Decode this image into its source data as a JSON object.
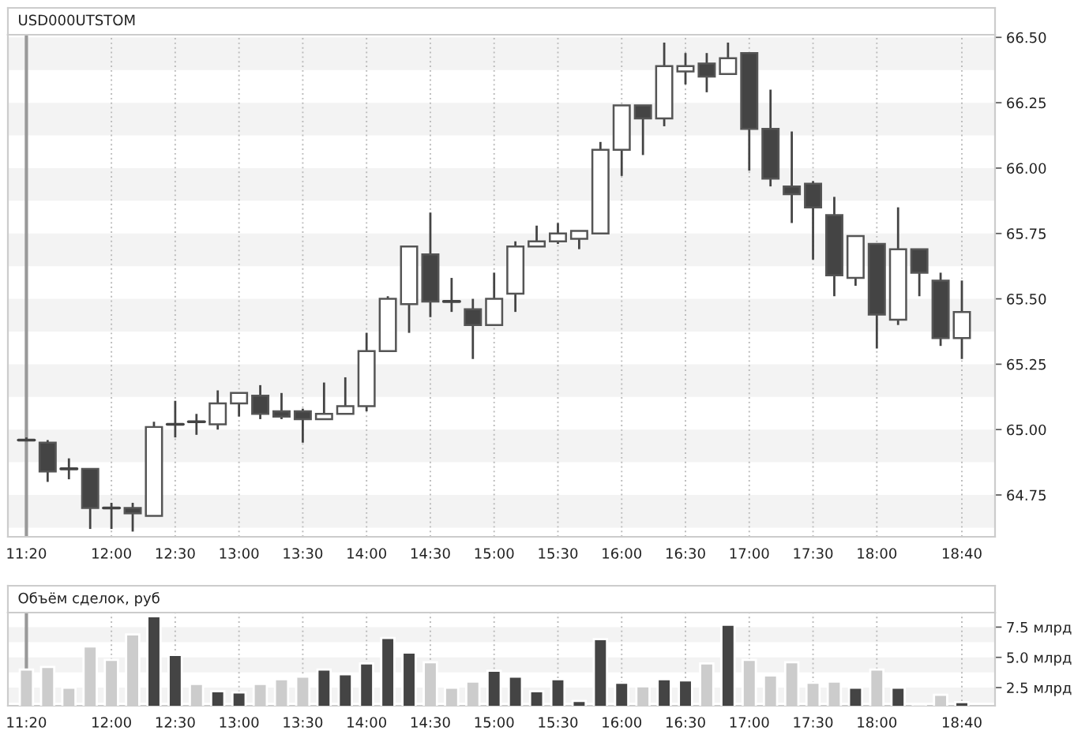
{
  "chart_data": [
    {
      "type": "candlestick",
      "title": "USD000UTSTOM",
      "categories": [
        "11:20",
        null,
        null,
        null,
        "12:00",
        null,
        null,
        "12:30",
        null,
        null,
        "13:00",
        null,
        null,
        "13:30",
        null,
        null,
        "14:00",
        null,
        null,
        "14:30",
        null,
        null,
        "15:00",
        null,
        null,
        "15:30",
        null,
        null,
        "16:00",
        null,
        null,
        "16:30",
        null,
        null,
        "17:00",
        null,
        null,
        "17:30",
        null,
        null,
        "18:00",
        null,
        null,
        null,
        "18:40"
      ],
      "ohlc": [
        [
          64.96,
          64.97,
          64.96,
          64.96
        ],
        [
          64.95,
          64.96,
          64.8,
          64.84
        ],
        [
          64.85,
          64.89,
          64.81,
          64.85
        ],
        [
          64.85,
          64.85,
          64.62,
          64.7
        ],
        [
          64.7,
          64.72,
          64.62,
          64.7
        ],
        [
          64.7,
          64.72,
          64.61,
          64.68
        ],
        [
          64.67,
          65.03,
          64.67,
          65.01
        ],
        [
          65.02,
          65.11,
          64.97,
          65.02
        ],
        [
          65.03,
          65.06,
          64.98,
          65.03
        ],
        [
          65.02,
          65.15,
          65.0,
          65.1
        ],
        [
          65.1,
          65.14,
          65.05,
          65.14
        ],
        [
          65.13,
          65.17,
          65.04,
          65.06
        ],
        [
          65.07,
          65.14,
          65.04,
          65.05
        ],
        [
          65.07,
          65.08,
          64.95,
          65.04
        ],
        [
          65.04,
          65.18,
          65.04,
          65.06
        ],
        [
          65.06,
          65.2,
          65.06,
          65.09
        ],
        [
          65.09,
          65.37,
          65.07,
          65.3
        ],
        [
          65.3,
          65.51,
          65.3,
          65.5
        ],
        [
          65.48,
          65.7,
          65.37,
          65.7
        ],
        [
          65.67,
          65.83,
          65.43,
          65.49
        ],
        [
          65.49,
          65.58,
          65.45,
          65.49
        ],
        [
          65.46,
          65.5,
          65.27,
          65.4
        ],
        [
          65.4,
          65.6,
          65.4,
          65.5
        ],
        [
          65.52,
          65.72,
          65.45,
          65.7
        ],
        [
          65.7,
          65.78,
          65.7,
          65.72
        ],
        [
          65.72,
          65.79,
          65.71,
          65.75
        ],
        [
          65.73,
          65.76,
          65.69,
          65.76
        ],
        [
          65.75,
          66.1,
          65.75,
          66.07
        ],
        [
          66.07,
          66.24,
          65.97,
          66.24
        ],
        [
          66.24,
          66.24,
          66.05,
          66.19
        ],
        [
          66.19,
          66.48,
          66.16,
          66.39
        ],
        [
          66.37,
          66.44,
          66.32,
          66.39
        ],
        [
          66.4,
          66.44,
          66.29,
          66.35
        ],
        [
          66.36,
          66.48,
          66.36,
          66.42
        ],
        [
          66.44,
          66.44,
          65.99,
          66.15
        ],
        [
          66.15,
          66.3,
          65.93,
          65.96
        ],
        [
          65.93,
          66.14,
          65.79,
          65.9
        ],
        [
          65.94,
          65.95,
          65.65,
          65.85
        ],
        [
          65.82,
          65.89,
          65.51,
          65.59
        ],
        [
          65.58,
          65.74,
          65.55,
          65.74
        ],
        [
          65.71,
          65.71,
          65.31,
          65.44
        ],
        [
          65.42,
          65.85,
          65.4,
          65.69
        ],
        [
          65.69,
          65.69,
          65.51,
          65.6
        ],
        [
          65.57,
          65.6,
          65.32,
          65.35
        ],
        [
          65.35,
          65.57,
          65.27,
          65.45
        ]
      ],
      "colors": [
        "#444444",
        "#444444",
        "#444444",
        "#444444",
        "#444444",
        "#444444",
        "#ffffff",
        "#444444",
        "#444444",
        "#ffffff",
        "#ffffff",
        "#444444",
        "#444444",
        "#444444",
        "#ffffff",
        "#ffffff",
        "#ffffff",
        "#ffffff",
        "#ffffff",
        "#444444",
        "#444444",
        "#444444",
        "#ffffff",
        "#ffffff",
        "#ffffff",
        "#ffffff",
        "#ffffff",
        "#ffffff",
        "#ffffff",
        "#444444",
        "#ffffff",
        "#ffffff",
        "#444444",
        "#ffffff",
        "#444444",
        "#444444",
        "#444444",
        "#444444",
        "#444444",
        "#ffffff",
        "#444444",
        "#ffffff",
        "#444444",
        "#444444",
        "#ffffff"
      ],
      "ylim": [
        64.59,
        66.51
      ],
      "yticks": [
        {
          "value": 64.75,
          "label": "64.75"
        },
        {
          "value": 65.0,
          "label": "65.00"
        },
        {
          "value": 65.25,
          "label": "65.25"
        },
        {
          "value": 65.5,
          "label": "65.50"
        },
        {
          "value": 65.75,
          "label": "65.75"
        },
        {
          "value": 66.0,
          "label": "66.00"
        },
        {
          "value": 66.25,
          "label": "66.25"
        },
        {
          "value": 66.5,
          "label": "66.50"
        }
      ],
      "ref_lines": [
        {
          "axis": "x",
          "value": "11:20",
          "color": "#999999"
        }
      ],
      "bands": [
        {
          "axis": "y",
          "from": 64.625,
          "to": 64.75,
          "color": "#f3f3f3"
        },
        {
          "axis": "y",
          "from": 64.875,
          "to": 65.0,
          "color": "#f3f3f3"
        },
        {
          "axis": "y",
          "from": 65.125,
          "to": 65.25,
          "color": "#f3f3f3"
        },
        {
          "axis": "y",
          "from": 65.375,
          "to": 65.5,
          "color": "#f3f3f3"
        },
        {
          "axis": "y",
          "from": 65.625,
          "to": 65.75,
          "color": "#f3f3f3"
        },
        {
          "axis": "y",
          "from": 65.875,
          "to": 66.0,
          "color": "#f3f3f3"
        },
        {
          "axis": "y",
          "from": 66.125,
          "to": 66.25,
          "color": "#f3f3f3"
        },
        {
          "axis": "y",
          "from": 66.375,
          "to": 66.5,
          "color": "#f3f3f3"
        }
      ],
      "grid": "x",
      "legend": false
    },
    {
      "type": "bar",
      "title": "Объём сделок, руб",
      "categories": [
        "11:20",
        null,
        null,
        null,
        "12:00",
        null,
        null,
        "12:30",
        null,
        null,
        "13:00",
        null,
        null,
        "13:30",
        null,
        null,
        "14:00",
        null,
        null,
        "14:30",
        null,
        null,
        "15:00",
        null,
        null,
        "15:30",
        null,
        null,
        "16:00",
        null,
        null,
        "16:30",
        null,
        null,
        "17:00",
        null,
        null,
        "17:30",
        null,
        null,
        "18:00",
        null,
        null,
        null,
        "18:40"
      ],
      "values": [
        4.0,
        4.2,
        2.5,
        5.9,
        4.8,
        6.9,
        8.4,
        5.2,
        2.8,
        2.2,
        2.1,
        2.8,
        3.2,
        3.4,
        4.0,
        3.6,
        4.5,
        6.6,
        5.4,
        4.6,
        2.5,
        3.0,
        3.9,
        3.4,
        2.2,
        3.2,
        1.4,
        6.5,
        2.9,
        2.6,
        3.2,
        3.1,
        4.5,
        7.7,
        4.8,
        3.5,
        4.6,
        2.9,
        3.0,
        2.5,
        4.0,
        2.5,
        1.1,
        1.9,
        1.3
      ],
      "colors": [
        "#cccccc",
        "#cccccc",
        "#cccccc",
        "#cccccc",
        "#cccccc",
        "#cccccc",
        "#444444",
        "#444444",
        "#cccccc",
        "#444444",
        "#444444",
        "#cccccc",
        "#cccccc",
        "#cccccc",
        "#444444",
        "#444444",
        "#444444",
        "#444444",
        "#444444",
        "#cccccc",
        "#cccccc",
        "#cccccc",
        "#444444",
        "#444444",
        "#444444",
        "#444444",
        "#444444",
        "#444444",
        "#444444",
        "#cccccc",
        "#444444",
        "#444444",
        "#cccccc",
        "#444444",
        "#cccccc",
        "#cccccc",
        "#cccccc",
        "#cccccc",
        "#cccccc",
        "#444444",
        "#cccccc",
        "#444444",
        "#cccccc",
        "#cccccc",
        "#444444"
      ],
      "ylim": [
        1.0,
        8.7
      ],
      "yticks": [
        {
          "value": 2.5,
          "label": "2.5 млрд"
        },
        {
          "value": 5.0,
          "label": "5.0 млрд"
        },
        {
          "value": 7.5,
          "label": "7.5 млрд"
        }
      ],
      "ref_lines": [
        {
          "axis": "x",
          "value": "11:20",
          "color": "#999999"
        }
      ],
      "bands": [
        {
          "axis": "y",
          "from": 1.25,
          "to": 2.5,
          "color": "#f3f3f3"
        },
        {
          "axis": "y",
          "from": 3.75,
          "to": 5.0,
          "color": "#f3f3f3"
        },
        {
          "axis": "y",
          "from": 6.25,
          "to": 7.5,
          "color": "#f3f3f3"
        }
      ],
      "grid": "x",
      "legend": false
    }
  ]
}
